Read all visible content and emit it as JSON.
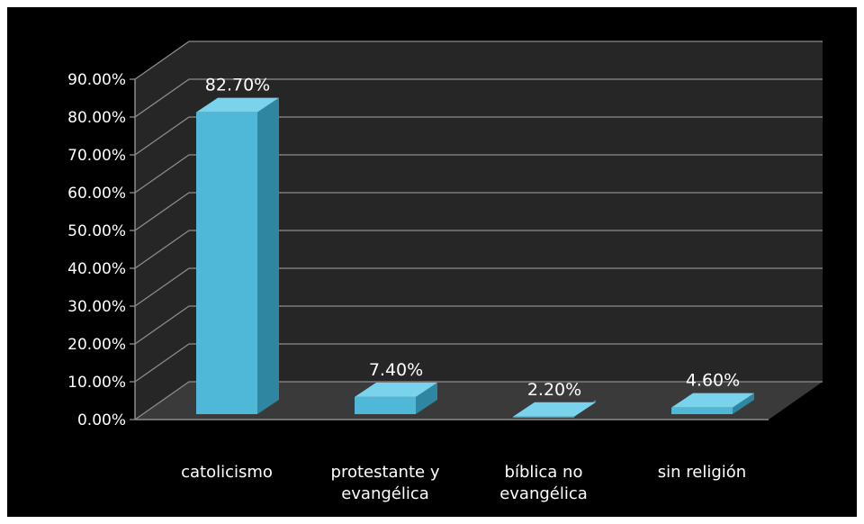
{
  "chart_data": {
    "type": "bar",
    "title": "",
    "xlabel": "",
    "ylabel": "",
    "categories": [
      [
        "catolicismo"
      ],
      [
        "protestante y",
        "evangélica"
      ],
      [
        "bíblica no",
        "evangélica"
      ],
      [
        "sin religión"
      ]
    ],
    "values": [
      82.7,
      7.4,
      2.2,
      4.6
    ],
    "data_labels": [
      "82.70%",
      "7.40%",
      "2.20%",
      "4.60%"
    ],
    "y_ticks": [
      "0.00%",
      "10.00%",
      "20.00%",
      "30.00%",
      "40.00%",
      "50.00%",
      "60.00%",
      "70.00%",
      "80.00%",
      "90.00%"
    ],
    "ylim": [
      0,
      90
    ],
    "grid": true,
    "legend": "none",
    "colors": {
      "background": "#000000",
      "wall": "#262626",
      "floor": "#3a3a3a",
      "gridline": "#8c8c8c",
      "bar_front": "#4fb8d8",
      "bar_top": "#7ad3ec",
      "bar_side": "#2f86a0",
      "text": "#ffffff"
    }
  }
}
